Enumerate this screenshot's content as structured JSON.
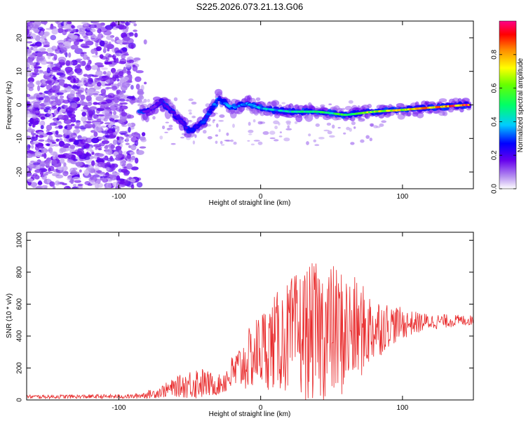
{
  "title": "S225.2026.073.21.13.G06",
  "chart_data": [
    {
      "type": "heatmap",
      "name": "spectrogram",
      "xlabel": "Height of straight line (km)",
      "ylabel": "Frequency (Hz)",
      "xlim": [
        -165,
        150
      ],
      "ylim": [
        -25,
        25
      ],
      "x_ticks": [
        -100,
        0,
        100
      ],
      "y_ticks": [
        -20,
        -10,
        0,
        10,
        20
      ],
      "colorbar": {
        "label": "Normalized spectral amplitude",
        "range": [
          0,
          1
        ],
        "ticks": [
          "0.0",
          "0.2",
          "0.4",
          "0.6",
          "0.8"
        ]
      },
      "ridge": {
        "description_points_x": [
          -80,
          -70,
          -60,
          -50,
          -40,
          -30,
          -20,
          -10,
          0,
          20,
          40,
          60,
          80,
          100,
          120,
          145
        ],
        "description_points_freq": [
          -2,
          1,
          -3,
          -8,
          -5,
          2,
          -1,
          0.5,
          -1,
          -2,
          -2,
          -3,
          -2,
          -1.5,
          -0.8,
          0
        ],
        "amplitude": [
          0.15,
          0.2,
          0.2,
          0.25,
          0.3,
          0.35,
          0.35,
          0.35,
          0.4,
          0.45,
          0.5,
          0.6,
          0.7,
          0.75,
          0.85,
          0.95
        ]
      }
    },
    {
      "type": "line",
      "name": "snr",
      "xlabel": "Height of straight line (km)",
      "ylabel": "SNR (10 * v/v)",
      "xlim": [
        -165,
        150
      ],
      "ylim": [
        0,
        1050
      ],
      "x_ticks": [
        -100,
        0,
        100
      ],
      "y_ticks": [
        0,
        200,
        400,
        600,
        800,
        1000
      ],
      "color": "#e8292a",
      "envelope_x": [
        -165,
        -90,
        -75,
        -60,
        -45,
        -30,
        -15,
        0,
        15,
        30,
        45,
        60,
        75,
        90,
        105,
        120,
        150
      ],
      "envelope_mean": [
        20,
        22,
        40,
        80,
        110,
        90,
        200,
        320,
        380,
        420,
        430,
        420,
        440,
        470,
        480,
        490,
        500
      ],
      "envelope_spread": [
        12,
        14,
        30,
        60,
        110,
        60,
        150,
        250,
        330,
        420,
        450,
        400,
        260,
        140,
        80,
        50,
        30
      ]
    }
  ]
}
